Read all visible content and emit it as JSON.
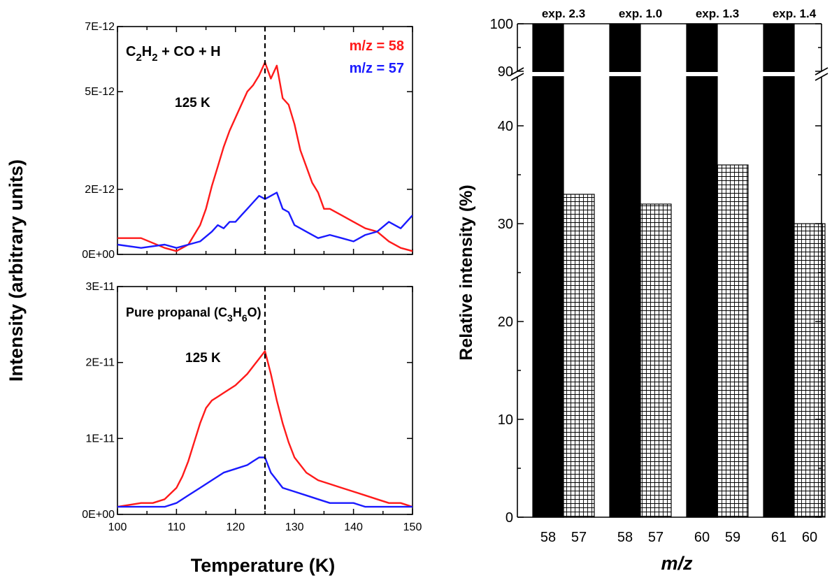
{
  "shared": {
    "ylabel": "Intensity (arbitrary units)",
    "xlabel": "Temperature (K)"
  },
  "colors": {
    "red": "#ff1a1a",
    "blue": "#1a1aff",
    "black": "#000000"
  },
  "chart_data": [
    {
      "type": "line",
      "annotation_species": [
        "C",
        "2",
        "H",
        "2",
        " + CO + H"
      ],
      "annotation_temp": "125 K",
      "legend": [
        "m/z = 58",
        "m/z = 57"
      ],
      "xlim": [
        100,
        150
      ],
      "ylim": [
        0,
        7e-12
      ],
      "ytick_labels": [
        "0E+00",
        "2E-12",
        "5E-12",
        "7E-12"
      ],
      "ytick_values": [
        0,
        2e-12,
        5e-12,
        7e-12
      ],
      "vline_x": 125,
      "series": [
        {
          "name": "m/z = 58",
          "color": "#ff1a1a",
          "x": [
            100,
            104,
            108,
            110,
            112,
            114,
            115,
            116,
            117,
            118,
            119,
            120,
            121,
            122,
            123,
            124,
            125,
            126,
            127,
            128,
            129,
            130,
            131,
            132,
            133,
            134,
            135,
            136,
            138,
            140,
            142,
            144,
            146,
            148,
            150
          ],
          "y": [
            5e-13,
            5e-13,
            2e-13,
            1e-13,
            3e-13,
            9e-13,
            1.4e-12,
            2.1e-12,
            2.7e-12,
            3.3e-12,
            3.8e-12,
            4.2e-12,
            4.6e-12,
            5e-12,
            5.2e-12,
            5.5e-12,
            5.9e-12,
            5.4e-12,
            5.8e-12,
            4.8e-12,
            4.6e-12,
            4e-12,
            3.2e-12,
            2.7e-12,
            2.2e-12,
            1.9e-12,
            1.4e-12,
            1.4e-12,
            1.2e-12,
            1e-12,
            8e-13,
            7e-13,
            4e-13,
            2e-13,
            1e-13
          ]
        },
        {
          "name": "m/z = 57",
          "color": "#1a1aff",
          "x": [
            100,
            104,
            108,
            110,
            112,
            114,
            116,
            117,
            118,
            119,
            120,
            121,
            122,
            123,
            124,
            125,
            126,
            127,
            128,
            129,
            130,
            131,
            132,
            134,
            136,
            138,
            140,
            142,
            144,
            146,
            148,
            150
          ],
          "y": [
            3e-13,
            2e-13,
            3e-13,
            2e-13,
            3e-13,
            4e-13,
            7e-13,
            9e-13,
            8e-13,
            1e-12,
            1e-12,
            1.2e-12,
            1.4e-12,
            1.6e-12,
            1.8e-12,
            1.7e-12,
            1.8e-12,
            1.9e-12,
            1.4e-12,
            1.3e-12,
            9e-13,
            8e-13,
            7e-13,
            5e-13,
            6e-13,
            5e-13,
            4e-13,
            6e-13,
            7e-13,
            1e-12,
            8e-13,
            1.2e-12
          ]
        }
      ]
    },
    {
      "type": "line",
      "annotation_species_prefix": "Pure propanal (",
      "annotation_species": [
        "C",
        "3",
        "H",
        "6",
        "O)"
      ],
      "annotation_temp": "125 K",
      "xlim": [
        100,
        150
      ],
      "ylim": [
        0,
        3e-11
      ],
      "ytick_labels": [
        "0E+00",
        "1E-11",
        "2E-11",
        "3E-11"
      ],
      "ytick_values": [
        0,
        1e-11,
        2e-11,
        3e-11
      ],
      "xtick_labels": [
        "100",
        "110",
        "120",
        "130",
        "140",
        "150"
      ],
      "xtick_values": [
        100,
        110,
        120,
        130,
        140,
        150
      ],
      "vline_x": 125,
      "series": [
        {
          "name": "m/z = 58",
          "color": "#ff1a1a",
          "x": [
            100,
            104,
            106,
            108,
            110,
            111,
            112,
            113,
            114,
            115,
            116,
            117,
            118,
            120,
            122,
            123,
            124,
            125,
            126,
            127,
            128,
            129,
            130,
            132,
            134,
            136,
            138,
            140,
            142,
            144,
            146,
            148,
            150
          ],
          "y": [
            1e-12,
            1.5e-12,
            1.5e-12,
            2e-12,
            3.5e-12,
            5e-12,
            7e-12,
            9.5e-12,
            1.2e-11,
            1.4e-11,
            1.5e-11,
            1.55e-11,
            1.6e-11,
            1.7e-11,
            1.85e-11,
            1.95e-11,
            2.05e-11,
            2.15e-11,
            1.85e-11,
            1.5e-11,
            1.2e-11,
            9.5e-12,
            7.5e-12,
            5.5e-12,
            4.5e-12,
            4e-12,
            3.5e-12,
            3e-12,
            2.5e-12,
            2e-12,
            1.5e-12,
            1.5e-12,
            1e-12
          ]
        },
        {
          "name": "m/z = 57",
          "color": "#1a1aff",
          "x": [
            100,
            104,
            108,
            110,
            112,
            114,
            116,
            118,
            120,
            122,
            123,
            124,
            125,
            126,
            127,
            128,
            130,
            132,
            134,
            136,
            138,
            140,
            142,
            144,
            146,
            148,
            150
          ],
          "y": [
            1e-12,
            1e-12,
            1e-12,
            1.5e-12,
            2.5e-12,
            3.5e-12,
            4.5e-12,
            5.5e-12,
            6e-12,
            6.5e-12,
            7e-12,
            7.5e-12,
            7.5e-12,
            5.5e-12,
            4.5e-12,
            3.5e-12,
            3e-12,
            2.5e-12,
            2e-12,
            1.5e-12,
            1.5e-12,
            1.5e-12,
            1e-12,
            1e-12,
            1e-12,
            1e-12,
            1e-12
          ]
        }
      ]
    },
    {
      "type": "bar",
      "ylabel": "Relative intensity (%)",
      "xlabel": "m/z",
      "lower_yticks": [
        "0",
        "10",
        "20",
        "30",
        "40"
      ],
      "lower_ytick_values": [
        0,
        10,
        20,
        30,
        40
      ],
      "upper_yticks": [
        "90",
        "100"
      ],
      "upper_ytick_values": [
        90,
        100
      ],
      "ylim_lower": [
        0,
        45
      ],
      "ylim_upper": [
        90,
        100
      ],
      "groups": [
        {
          "exp_label": "exp. 2.3",
          "bars": [
            {
              "label": "58",
              "value": 100,
              "fill": "solid"
            },
            {
              "label": "57",
              "value": 33,
              "fill": "grid"
            }
          ]
        },
        {
          "exp_label": "exp. 1.0",
          "bars": [
            {
              "label": "58",
              "value": 100,
              "fill": "solid"
            },
            {
              "label": "57",
              "value": 32,
              "fill": "grid"
            }
          ]
        },
        {
          "exp_label": "exp. 1.3",
          "bars": [
            {
              "label": "60",
              "value": 100,
              "fill": "solid"
            },
            {
              "label": "59",
              "value": 36,
              "fill": "grid"
            }
          ]
        },
        {
          "exp_label": "exp. 1.4",
          "bars": [
            {
              "label": "61",
              "value": 100,
              "fill": "solid"
            },
            {
              "label": "60",
              "value": 30,
              "fill": "grid"
            }
          ]
        }
      ]
    }
  ]
}
